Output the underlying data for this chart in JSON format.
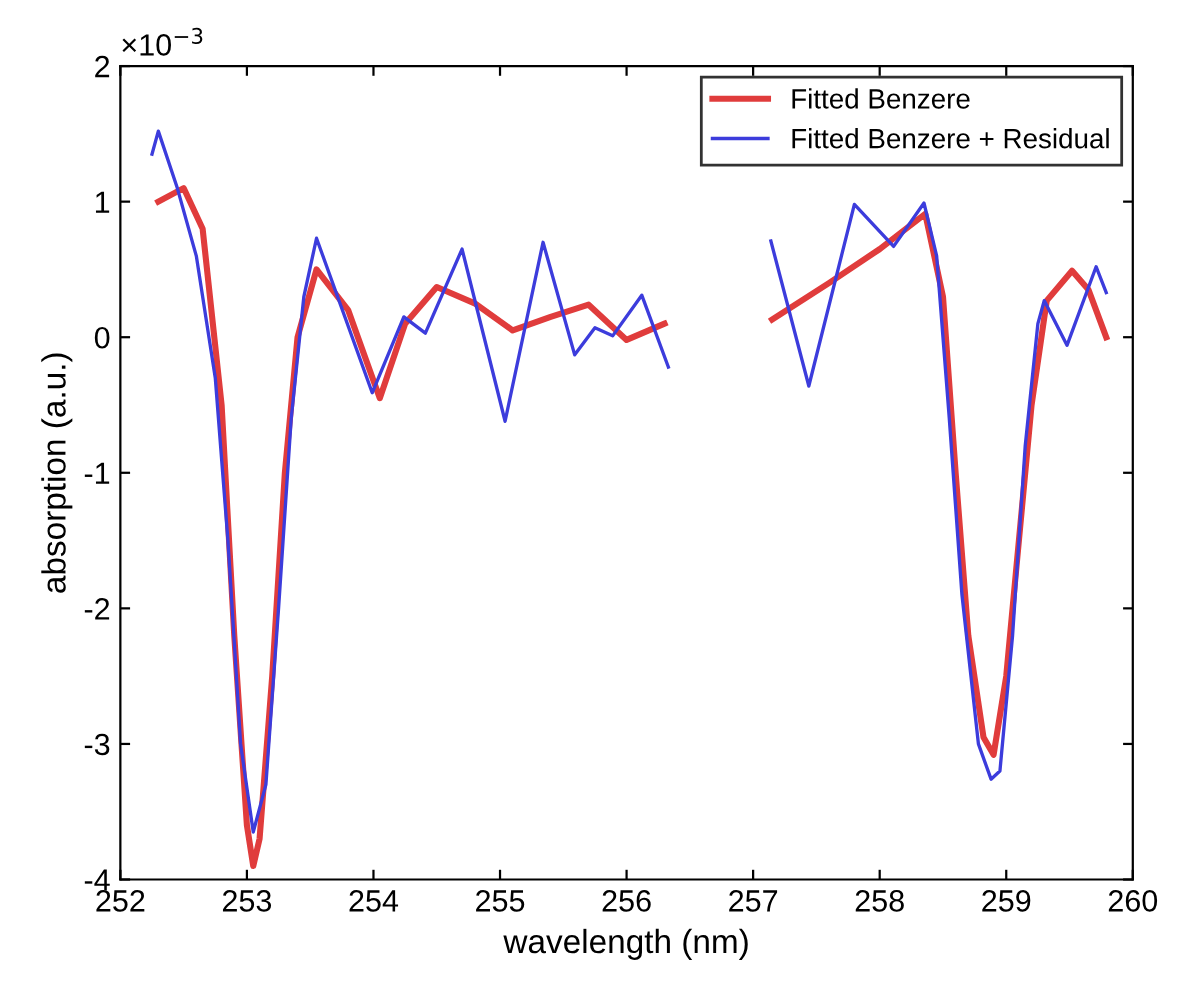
{
  "chart_data": {
    "type": "line",
    "xlabel": "wavelength (nm)",
    "ylabel": "absorption (a.u.)",
    "annotations": [
      "×10$^{−3}$"
    ],
    "xlim": [
      252,
      260
    ],
    "xticks": [
      252,
      253,
      254,
      255,
      256,
      257,
      258,
      259,
      260
    ],
    "ylim": [
      -4,
      2
    ],
    "yticks": [
      -4,
      -3,
      -2,
      -1,
      0,
      1,
      2
    ],
    "legend": "top right",
    "grid": false,
    "line_style": "solid",
    "marker": "none",
    "series": [
      {
        "name": "Fitted Benzere",
        "color": "#e03c3c",
        "x": [
          252.3,
          252.5,
          252.65,
          252.8,
          252.9,
          253.0,
          253.05,
          253.1,
          253.2,
          253.3,
          253.4,
          253.55,
          253.8,
          254.05,
          254.25,
          254.5,
          254.8,
          255.1,
          255.4,
          255.7,
          256.0,
          256.3,
          null,
          257.15,
          257.6,
          258.0,
          258.36,
          258.5,
          258.6,
          258.7,
          258.82,
          258.9,
          259.0,
          259.1,
          259.2,
          259.32,
          259.52,
          259.65,
          259.79
        ],
        "values": [
          1.0,
          1.1,
          0.8,
          -0.5,
          -2.2,
          -3.6,
          -3.9,
          -3.7,
          -2.5,
          -1.0,
          0.0,
          0.5,
          0.2,
          -0.45,
          0.1,
          0.37,
          0.25,
          0.05,
          0.15,
          0.24,
          -0.02,
          0.1,
          null,
          0.13,
          0.4,
          0.65,
          0.91,
          0.3,
          -1.0,
          -2.2,
          -2.95,
          -3.08,
          -2.5,
          -1.5,
          -0.5,
          0.27,
          0.49,
          0.35,
          0.0
        ]
      },
      {
        "name": "Fitted Benzere + Residual",
        "color": "#3c3cdc",
        "x": [
          252.25,
          252.3,
          252.45,
          252.6,
          252.75,
          252.85,
          252.95,
          253.05,
          253.15,
          253.25,
          253.35,
          253.45,
          253.55,
          253.99,
          254.24,
          254.41,
          254.7,
          255.04,
          255.34,
          255.59,
          255.75,
          255.89,
          256.12,
          256.33,
          null,
          257.14,
          257.44,
          257.8,
          258.11,
          258.35,
          258.45,
          258.55,
          258.65,
          258.78,
          258.88,
          258.95,
          259.05,
          259.15,
          259.25,
          259.3,
          259.48,
          259.71,
          259.79
        ],
        "values": [
          1.35,
          1.52,
          1.1,
          0.6,
          -0.3,
          -1.5,
          -3.0,
          -3.65,
          -3.3,
          -2.0,
          -0.6,
          0.3,
          0.73,
          -0.41,
          0.15,
          0.03,
          0.65,
          -0.62,
          0.7,
          -0.13,
          0.07,
          0.01,
          0.31,
          -0.22,
          null,
          0.71,
          -0.36,
          0.98,
          0.67,
          0.99,
          0.6,
          -0.6,
          -1.9,
          -3.0,
          -3.26,
          -3.2,
          -2.2,
          -0.8,
          0.1,
          0.27,
          -0.06,
          0.52,
          0.33
        ]
      }
    ]
  }
}
